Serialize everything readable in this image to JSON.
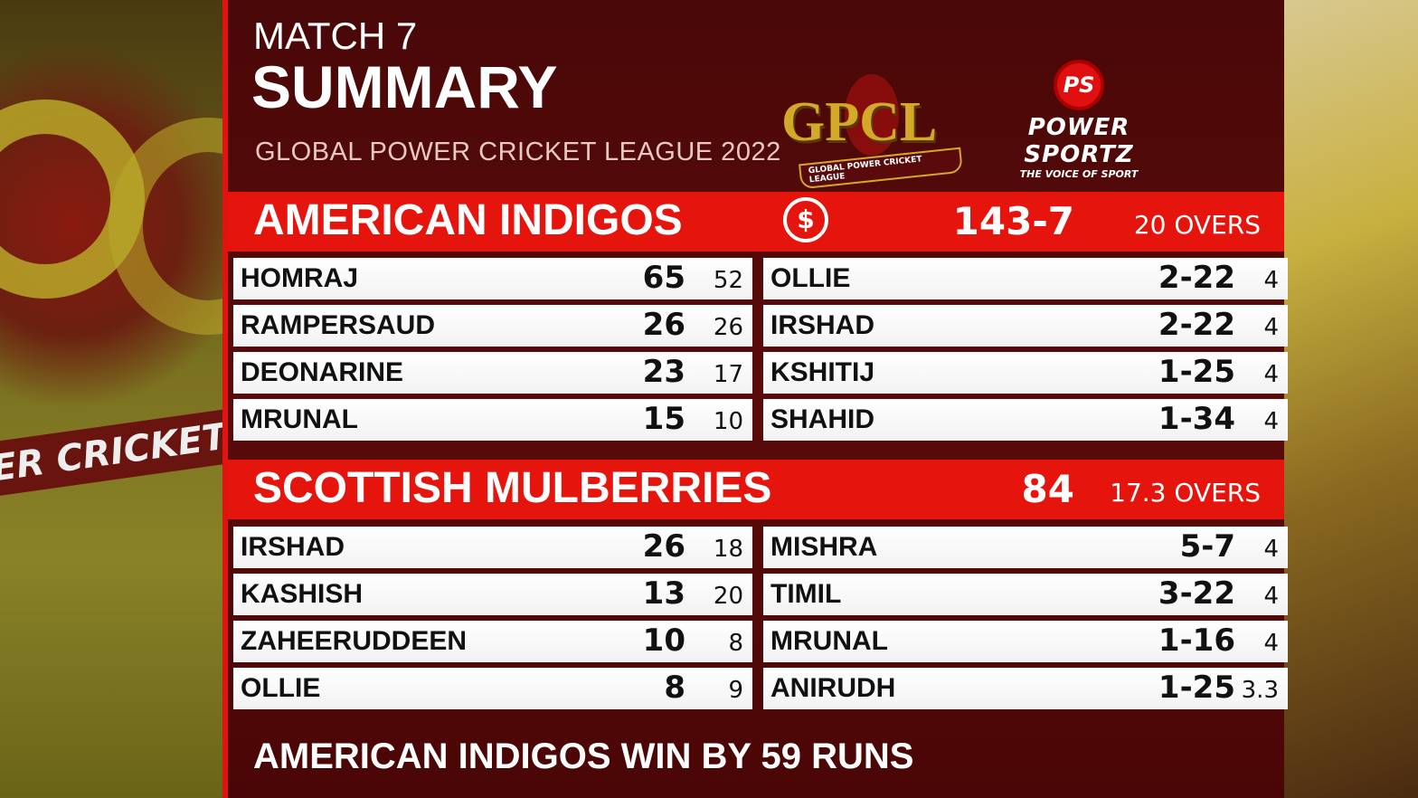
{
  "header": {
    "match": "MATCH 7",
    "title": "SUMMARY",
    "league": "GLOBAL POWER CRICKET LEAGUE 2022"
  },
  "logos": {
    "gpcl": "GPCL",
    "gpcl_sub": "GLOBAL POWER CRICKET LEAGUE",
    "ps_mark": "PS",
    "ps_name": "POWER SPORTZ",
    "ps_tagline": "THE VOICE OF SPORT"
  },
  "colors": {
    "accent": "#e5150e",
    "panel": "#4a0808"
  },
  "innings": [
    {
      "team": "AMERICAN INDIGOS",
      "score": "143-7",
      "overs": "20 OVERS",
      "icon": "dollar-coin-icon",
      "batting": [
        {
          "name": "HOMRAJ",
          "runs": "65",
          "balls": "52"
        },
        {
          "name": "RAMPERSAUD",
          "runs": "26",
          "balls": "26"
        },
        {
          "name": "DEONARINE",
          "runs": "23",
          "balls": "17"
        },
        {
          "name": "MRUNAL",
          "runs": "15",
          "balls": "10"
        }
      ],
      "bowling": [
        {
          "name": "OLLIE",
          "figures": "2-22",
          "overs": "4"
        },
        {
          "name": "IRSHAD",
          "figures": "2-22",
          "overs": "4"
        },
        {
          "name": "KSHITIJ",
          "figures": "1-25",
          "overs": "4"
        },
        {
          "name": "SHAHID",
          "figures": "1-34",
          "overs": "4"
        }
      ]
    },
    {
      "team": "SCOTTISH MULBERRIES",
      "score": "84",
      "overs": "17.3 OVERS",
      "batting": [
        {
          "name": "IRSHAD",
          "runs": "26",
          "balls": "18"
        },
        {
          "name": "KASHISH",
          "runs": "13",
          "balls": "20"
        },
        {
          "name": "ZAHEERUDDEEN",
          "runs": "10",
          "balls": "8"
        },
        {
          "name": "OLLIE",
          "runs": "8",
          "balls": "9"
        }
      ],
      "bowling": [
        {
          "name": "MISHRA",
          "figures": "5-7",
          "overs": "4"
        },
        {
          "name": "TIMIL",
          "figures": "3-22",
          "overs": "4"
        },
        {
          "name": "MRUNAL",
          "figures": "1-16",
          "overs": "4"
        },
        {
          "name": "ANIRUDH",
          "figures": "1-25",
          "overs": "3.3"
        }
      ]
    }
  ],
  "result": "AMERICAN INDIGOS WIN BY 59 RUNS",
  "background": {
    "banner": "ER CRICKET"
  }
}
